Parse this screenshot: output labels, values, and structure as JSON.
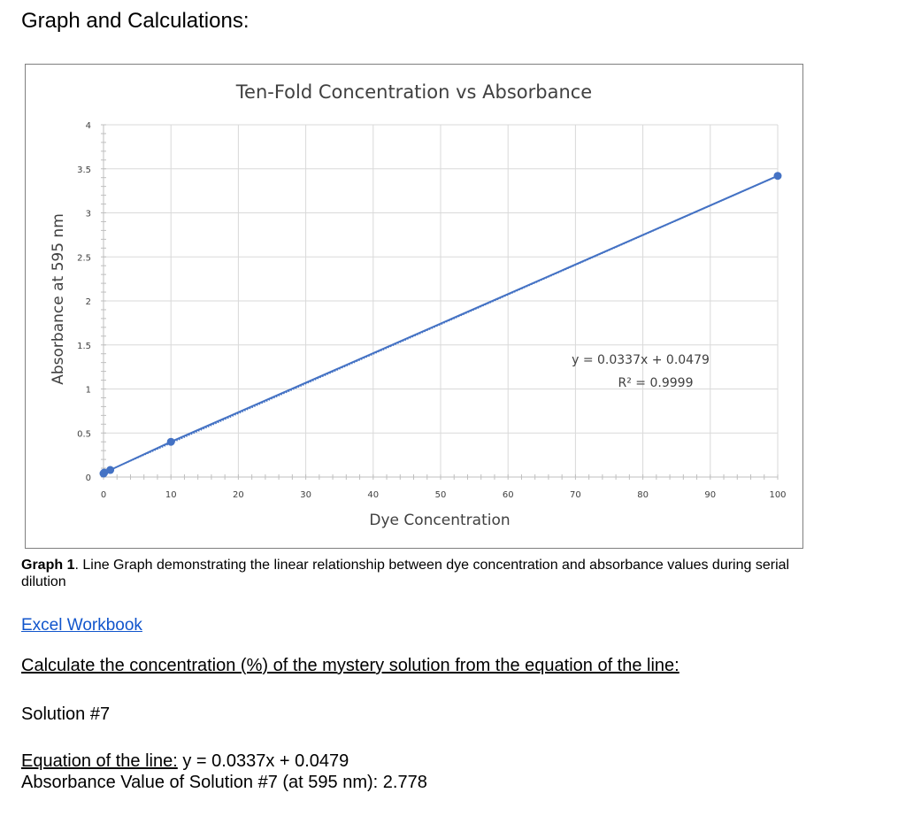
{
  "page": {
    "heading": "Graph and Calculations:",
    "caption_label": "Graph 1",
    "caption_text": ". Line Graph demonstrating the linear relationship between dye concentration and absorbance values during serial dilution",
    "link_text": "Excel Workbook",
    "question": "Calculate the concentration (%) of the mystery solution from the equation of the line:",
    "solution_label": "Solution #7",
    "equation_label": "Equation of the line:",
    "equation_value": " y = 0.0337x + 0.0479",
    "absorbance_label": "Absorbance Value of Solution #7 (at 595 nm): 2.778"
  },
  "chart_data": {
    "type": "scatter",
    "title": "Ten-Fold Concentration vs Absorbance",
    "xlabel": "Dye Concentration",
    "ylabel": "Absorbance at 595 nm",
    "xlim": [
      0,
      100
    ],
    "ylim": [
      0,
      4
    ],
    "xticks": [
      0,
      10,
      20,
      30,
      40,
      50,
      60,
      70,
      80,
      90,
      100
    ],
    "yticks": [
      0,
      0.5,
      1,
      1.5,
      2,
      2.5,
      3,
      3.5,
      4
    ],
    "grid": true,
    "series": [
      {
        "x": [
          0,
          0.1,
          1,
          10,
          100
        ],
        "y": [
          0.04,
          0.05,
          0.08,
          0.4,
          3.42
        ],
        "color": "#4472c4"
      }
    ],
    "trendline": {
      "slope": 0.0337,
      "intercept": 0.0479,
      "equation": "y = 0.0337x + 0.0479",
      "r2": "R² = 0.9999",
      "color": "#4472c4"
    }
  }
}
